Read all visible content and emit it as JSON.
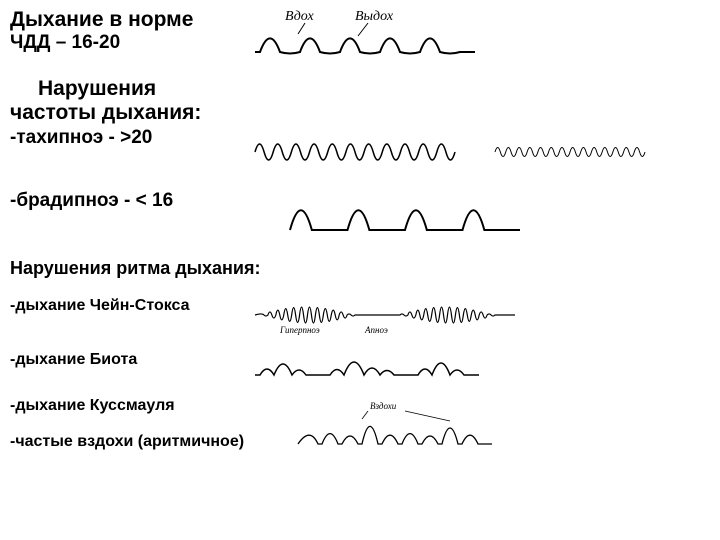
{
  "normal": {
    "title": "Дыхание в норме",
    "subtitle": "ЧДД  – 16-20",
    "label_in": "Вдох",
    "label_out": "Выдох",
    "wave": {
      "stroke": "#000000",
      "width": 2,
      "baseline": 44,
      "amp": 16,
      "cycles": 5,
      "len": 200,
      "start": 10
    }
  },
  "freq": {
    "title_l1": "Нарушения",
    "title_l2": "частоты дыхания:",
    "tachy": {
      "label": "-тахипноэ - >20",
      "wave1": {
        "stroke": "#000000",
        "width": 1.5,
        "baseline": 25,
        "amp": 16,
        "cycles": 11,
        "len": 200,
        "start": 5
      },
      "wave2": {
        "stroke": "#000000",
        "width": 1,
        "baseline": 25,
        "amp": 9,
        "cycles": 14,
        "len": 150,
        "start": 5
      }
    },
    "brady": {
      "label": "-брадипноэ - < 16",
      "wave": {
        "stroke": "#000000",
        "width": 2,
        "baseline": 40,
        "amp": 22,
        "cycles": 4,
        "len": 230,
        "start": 10,
        "narrow": true
      }
    }
  },
  "rhythm": {
    "title": "Нарушения ритма дыхания:",
    "cheyne": {
      "label": "-дыхание Чейн-Стокса",
      "lbl_hyper": "Гиперпноэ",
      "lbl_apnea": "Апноэ"
    },
    "biot": {
      "label": "-дыхание Биота"
    },
    "kussmaul": {
      "label": "-дыхание Куссмауля"
    },
    "sighs": {
      "label": "-частые вздохи (аритмичное)",
      "lbl_sigh": "Вздохи"
    }
  },
  "colors": {
    "stroke": "#000000",
    "bg": "#ffffff"
  }
}
